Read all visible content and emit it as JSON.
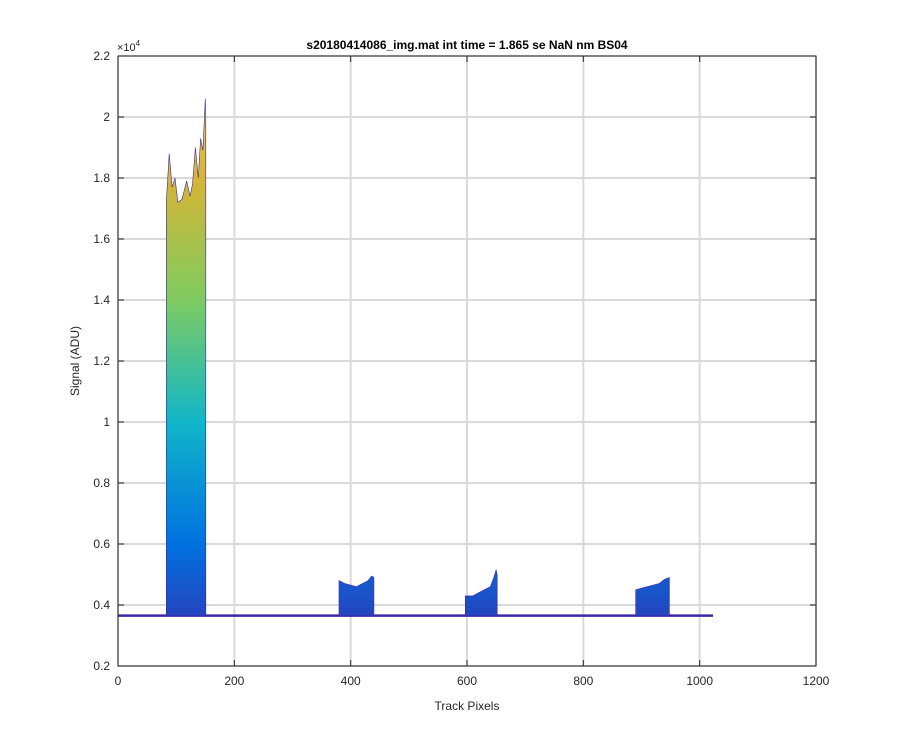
{
  "chart_data": {
    "type": "line",
    "title": "s20180414086_img.mat int time = 1.865 se  NaN nm BS04",
    "xlabel": "Track Pixels",
    "ylabel": "Signal (ADU)",
    "y_exponent_label": "×10",
    "y_exponent_value": "4",
    "xlim": [
      0,
      1200
    ],
    "ylim": [
      0.2,
      2.2
    ],
    "y_scale_factor": 10000,
    "grid": true,
    "x_ticks": [
      {
        "value": 0,
        "label": "0"
      },
      {
        "value": 200,
        "label": "200"
      },
      {
        "value": 400,
        "label": "400"
      },
      {
        "value": 600,
        "label": "600"
      },
      {
        "value": 800,
        "label": "800"
      },
      {
        "value": 1000,
        "label": "1000"
      },
      {
        "value": 1200,
        "label": "1200"
      }
    ],
    "y_ticks": [
      {
        "value": 0.2,
        "label": "0.2"
      },
      {
        "value": 0.4,
        "label": "0.4"
      },
      {
        "value": 0.6,
        "label": "0.6"
      },
      {
        "value": 0.8,
        "label": "0.8"
      },
      {
        "value": 1.0,
        "label": "1"
      },
      {
        "value": 1.2,
        "label": "1.2"
      },
      {
        "value": 1.4,
        "label": "1.4"
      },
      {
        "value": 1.6,
        "label": "1.6"
      },
      {
        "value": 1.8,
        "label": "1.8"
      },
      {
        "value": 2.0,
        "label": "2"
      },
      {
        "value": 2.2,
        "label": "2.2"
      }
    ],
    "colormap": [
      "#3e26a8",
      "#0072e0",
      "#11b6c8",
      "#7fcb60",
      "#d6b533",
      "#f9e31b"
    ],
    "baseline": 0.365,
    "x_end": 1023,
    "bands": [
      {
        "x0": 83,
        "x1": 151,
        "envelope": [
          [
            83,
            1.72
          ],
          [
            88,
            1.88
          ],
          [
            93,
            1.77
          ],
          [
            98,
            1.8
          ],
          [
            103,
            1.72
          ],
          [
            110,
            1.73
          ],
          [
            118,
            1.79
          ],
          [
            124,
            1.74
          ],
          [
            128,
            1.78
          ],
          [
            133,
            1.9
          ],
          [
            138,
            1.8
          ],
          [
            142,
            1.93
          ],
          [
            146,
            1.89
          ],
          [
            150,
            2.06
          ],
          [
            151,
            2.0
          ]
        ]
      },
      {
        "x0": 380,
        "x1": 440,
        "envelope": [
          [
            380,
            0.48
          ],
          [
            390,
            0.47
          ],
          [
            400,
            0.465
          ],
          [
            410,
            0.46
          ],
          [
            420,
            0.47
          ],
          [
            430,
            0.48
          ],
          [
            436,
            0.495
          ],
          [
            440,
            0.49
          ]
        ]
      },
      {
        "x0": 597,
        "x1": 652,
        "envelope": [
          [
            597,
            0.43
          ],
          [
            610,
            0.43
          ],
          [
            620,
            0.44
          ],
          [
            630,
            0.45
          ],
          [
            640,
            0.46
          ],
          [
            646,
            0.49
          ],
          [
            650,
            0.515
          ],
          [
            652,
            0.5
          ]
        ]
      },
      {
        "x0": 890,
        "x1": 948,
        "envelope": [
          [
            890,
            0.45
          ],
          [
            900,
            0.455
          ],
          [
            910,
            0.46
          ],
          [
            920,
            0.465
          ],
          [
            930,
            0.47
          ],
          [
            940,
            0.485
          ],
          [
            948,
            0.49
          ]
        ]
      }
    ]
  }
}
